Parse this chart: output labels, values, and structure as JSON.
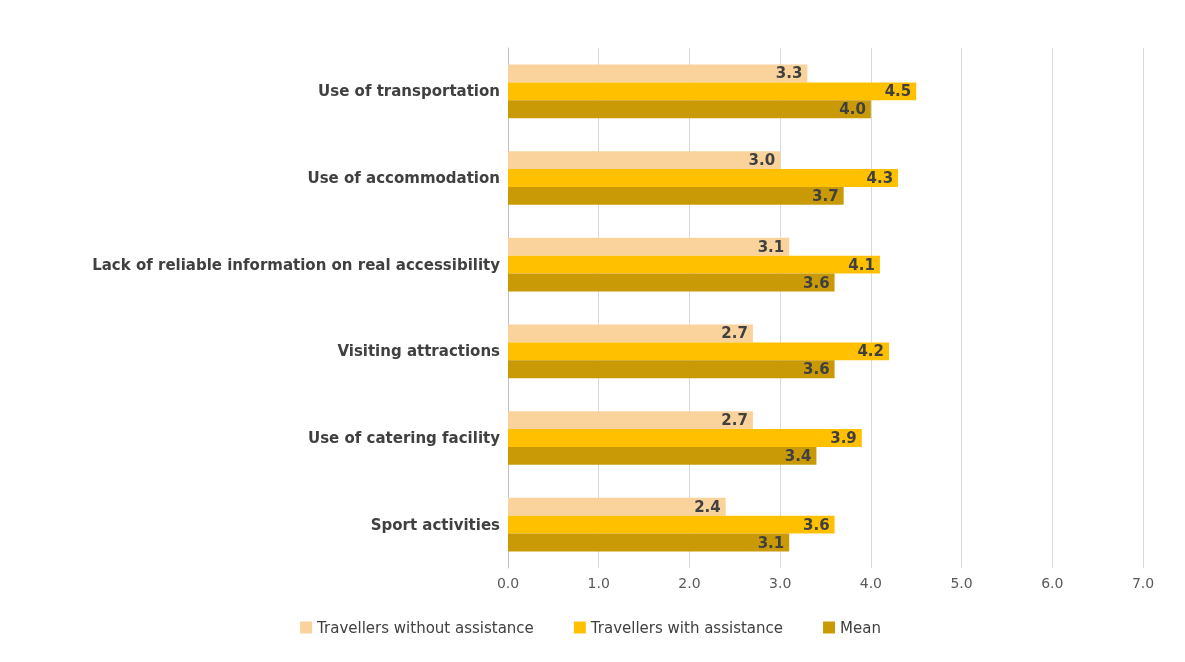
{
  "chart_data": {
    "type": "bar",
    "orientation": "horizontal",
    "categories": [
      "Use of transportation",
      "Use of accommodation",
      "Lack of reliable information on real accessibility",
      "Visiting attractions",
      "Use of catering facility",
      "Sport activities"
    ],
    "series": [
      {
        "name": "Travellers without assistance",
        "color": "#f9d39b",
        "values": [
          3.3,
          3.0,
          3.1,
          2.7,
          2.7,
          2.4
        ],
        "value_labels": [
          "3.3",
          "3.0",
          "3.1",
          "2.7",
          "2.7",
          "2.4"
        ]
      },
      {
        "name": "Travellers with assistance",
        "color": "#ffc000",
        "values": [
          4.5,
          4.3,
          4.1,
          4.2,
          3.9,
          3.6
        ],
        "value_labels": [
          "4.5",
          "4.3",
          "4.1",
          "4.2",
          "3.9",
          "3.6"
        ]
      },
      {
        "name": "Mean",
        "color": "#c99a06",
        "values": [
          4.0,
          3.7,
          3.6,
          3.6,
          3.4,
          3.1
        ],
        "value_labels": [
          "4.0",
          "3.7",
          "3.6",
          "3.6",
          "3.4",
          "3.1"
        ]
      }
    ],
    "xlim": [
      0,
      7
    ],
    "xticks": [
      {
        "value": 0,
        "label": "0.0"
      },
      {
        "value": 1,
        "label": "1.0"
      },
      {
        "value": 2,
        "label": "2.0"
      },
      {
        "value": 3,
        "label": "3.0"
      },
      {
        "value": 4,
        "label": "4.0"
      },
      {
        "value": 5,
        "label": "5.0"
      },
      {
        "value": 6,
        "label": "6.0"
      },
      {
        "value": 7,
        "label": "7.0"
      }
    ],
    "grid": "x",
    "legend": "bottom"
  }
}
